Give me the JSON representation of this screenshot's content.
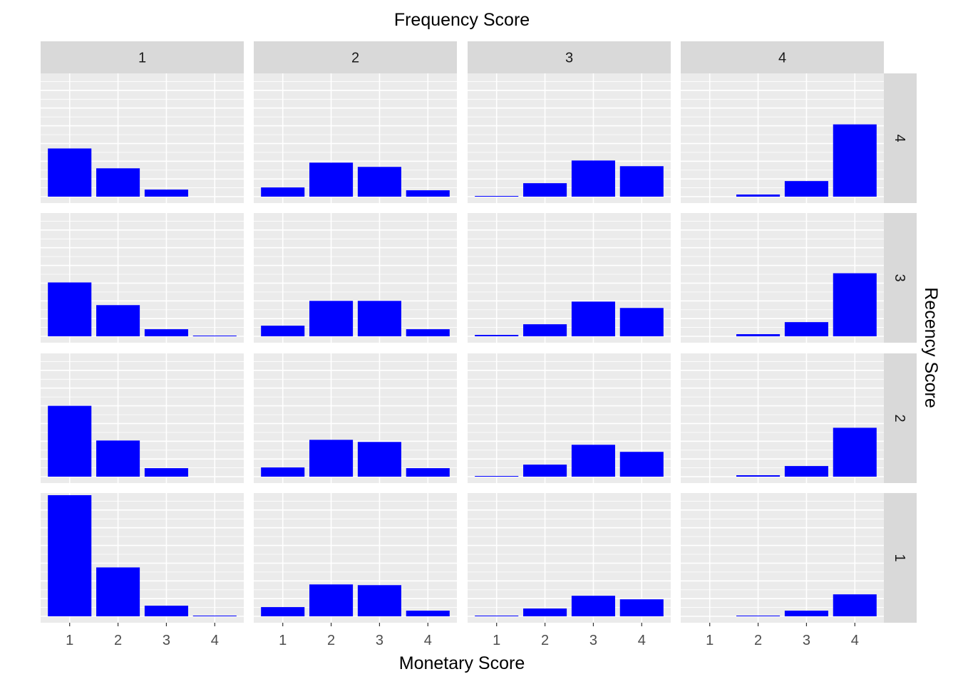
{
  "chart_data": {
    "type": "bar",
    "facet_type": "grid",
    "col_title": "Frequency Score",
    "row_title": "Recency Score",
    "xlabel": "Monetary Score",
    "ylabel": "",
    "categories": [
      "1",
      "2",
      "3",
      "4"
    ],
    "facet_cols": [
      "1",
      "2",
      "3",
      "4"
    ],
    "facet_rows": [
      "4",
      "3",
      "2",
      "1"
    ],
    "ylim": [
      0,
      174
    ],
    "grid": true,
    "bar_color": "#0000FF",
    "values": [
      [
        [
          68,
          40,
          10,
          0
        ],
        [
          13,
          48,
          42,
          9
        ],
        [
          1,
          19,
          51,
          43
        ],
        [
          0,
          3,
          22,
          102
        ]
      ],
      [
        [
          76,
          44,
          10,
          1
        ],
        [
          15,
          50,
          50,
          10
        ],
        [
          2,
          17,
          49,
          40
        ],
        [
          0,
          3,
          20,
          89
        ]
      ],
      [
        [
          100,
          51,
          12,
          0
        ],
        [
          13,
          52,
          49,
          12
        ],
        [
          1,
          17,
          45,
          35
        ],
        [
          0,
          2,
          15,
          69
        ]
      ],
      [
        [
          171,
          69,
          15,
          1
        ],
        [
          13,
          45,
          44,
          8
        ],
        [
          1,
          11,
          29,
          24
        ],
        [
          0,
          1,
          8,
          31
        ]
      ]
    ]
  },
  "colors": {
    "panel_bg": "#EBEBEB",
    "grid": "#FFFFFF",
    "strip_bg": "#D9D9D9"
  }
}
